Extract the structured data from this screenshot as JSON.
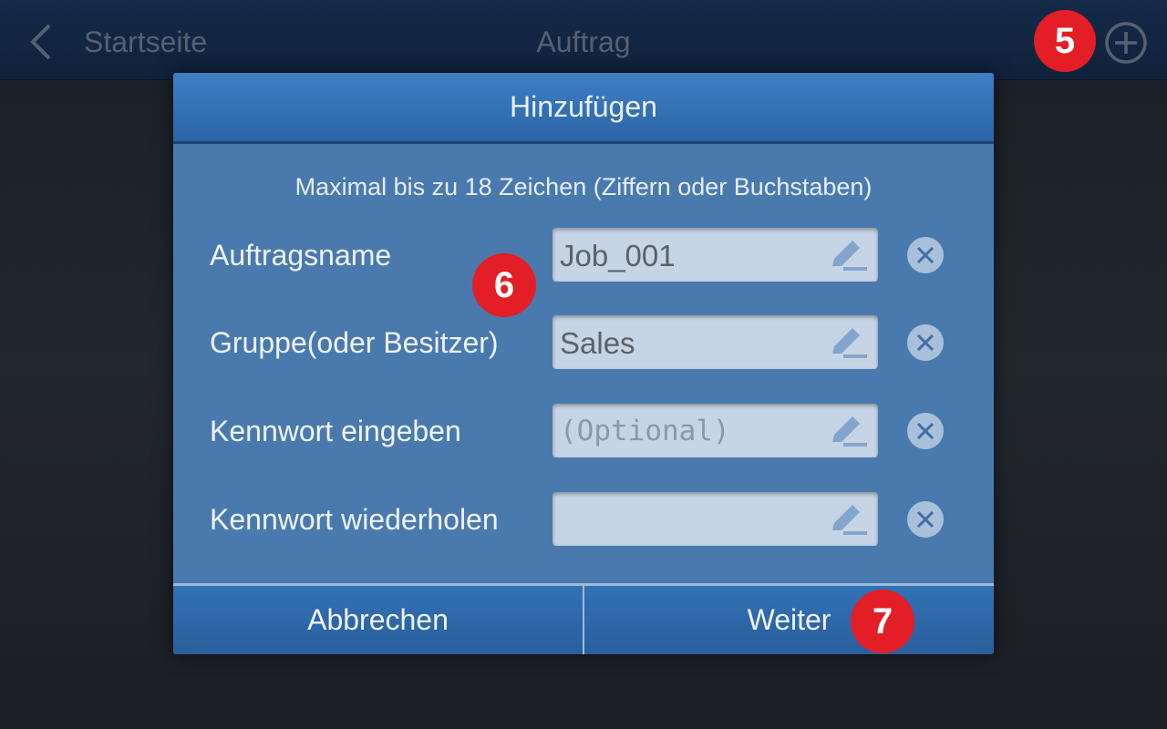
{
  "topbar": {
    "back_label": "Startseite",
    "title": "Auftrag"
  },
  "dialog": {
    "title": "Hinzufügen",
    "hint": "Maximal bis zu 18 Zeichen (Ziffern oder Buchstaben)",
    "fields": [
      {
        "label": "Auftragsname",
        "value": "Job_001",
        "placeholder": ""
      },
      {
        "label": "Gruppe(oder Besitzer)",
        "value": "Sales",
        "placeholder": ""
      },
      {
        "label": "Kennwort eingeben",
        "value": "",
        "placeholder": "(Optional)"
      },
      {
        "label": "Kennwort wiederholen",
        "value": "",
        "placeholder": ""
      }
    ],
    "cancel_label": "Abbrechen",
    "next_label": "Weiter"
  },
  "callouts": {
    "a": "5",
    "b": "6",
    "c": "7"
  },
  "colors": {
    "callout": "#e41e26",
    "dialog_header": "#2b64a6",
    "dialog_body": "#4a7aad"
  }
}
